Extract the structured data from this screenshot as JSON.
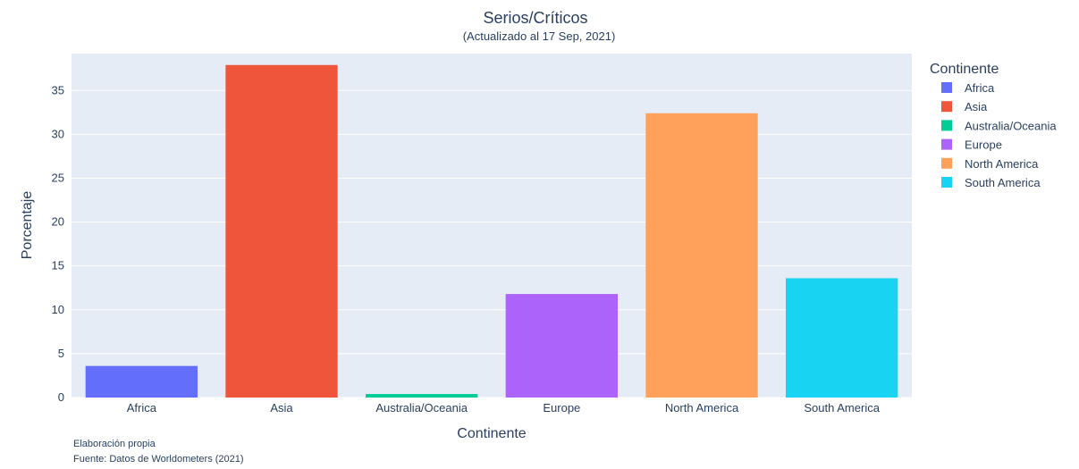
{
  "chart_data": {
    "type": "bar",
    "title": "Serios/Críticos",
    "subtitle": "(Actualizado al 17 Sep, 2021)",
    "xlabel": "Continente",
    "ylabel": "Porcentaje",
    "categories": [
      "Africa",
      "Asia",
      "Australia/Oceania",
      "Europe",
      "North America",
      "South America"
    ],
    "values": [
      3.6,
      37.9,
      0.4,
      11.8,
      32.4,
      13.6
    ],
    "colors": [
      "#636efa",
      "#ef553b",
      "#00cc96",
      "#ab63fa",
      "#ffa15a",
      "#19d3f3"
    ],
    "ylim": [
      0,
      39.2
    ],
    "yticks": [
      0,
      5,
      10,
      15,
      20,
      25,
      30,
      35
    ],
    "ytick_labels": [
      "0",
      "5",
      "10",
      "15",
      "20",
      "25",
      "30",
      "35"
    ],
    "grid": true,
    "plot_background": "#e5ecf6",
    "legend": {
      "title": "Continente",
      "placement": "right",
      "entries": [
        "Africa",
        "Asia",
        "Australia/Oceania",
        "Europe",
        "North America",
        "South America"
      ]
    },
    "annotations": [
      "Elaboración propia",
      "Fuente: Datos de Worldometers (2021)"
    ]
  }
}
